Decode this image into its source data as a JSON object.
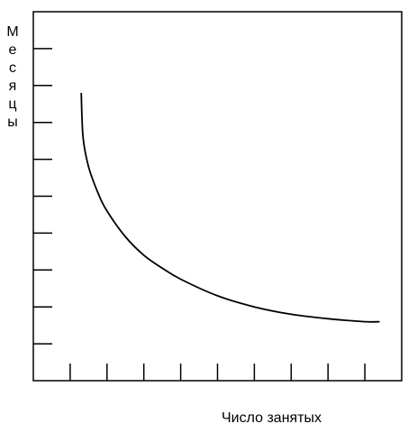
{
  "chart_data": {
    "type": "line",
    "title": "",
    "xlabel": "Число занятых",
    "ylabel": "Месяцы",
    "grid": false,
    "legend": "none",
    "x_ticks": 9,
    "y_ticks": 9,
    "xlim": [
      0,
      10
    ],
    "ylim": [
      0,
      10
    ],
    "series": [
      {
        "x": [
          1.3,
          1.35,
          1.5,
          1.75,
          2.0,
          2.5,
          3.0,
          3.5,
          4.0,
          5.0,
          6.0,
          7.0,
          8.0,
          9.0,
          9.4
        ],
        "values": [
          7.8,
          6.6,
          5.8,
          5.1,
          4.6,
          3.9,
          3.4,
          3.05,
          2.75,
          2.3,
          2.0,
          1.8,
          1.68,
          1.6,
          1.6
        ]
      }
    ],
    "colors": {
      "axis": "#000000",
      "line": "#000000"
    }
  }
}
